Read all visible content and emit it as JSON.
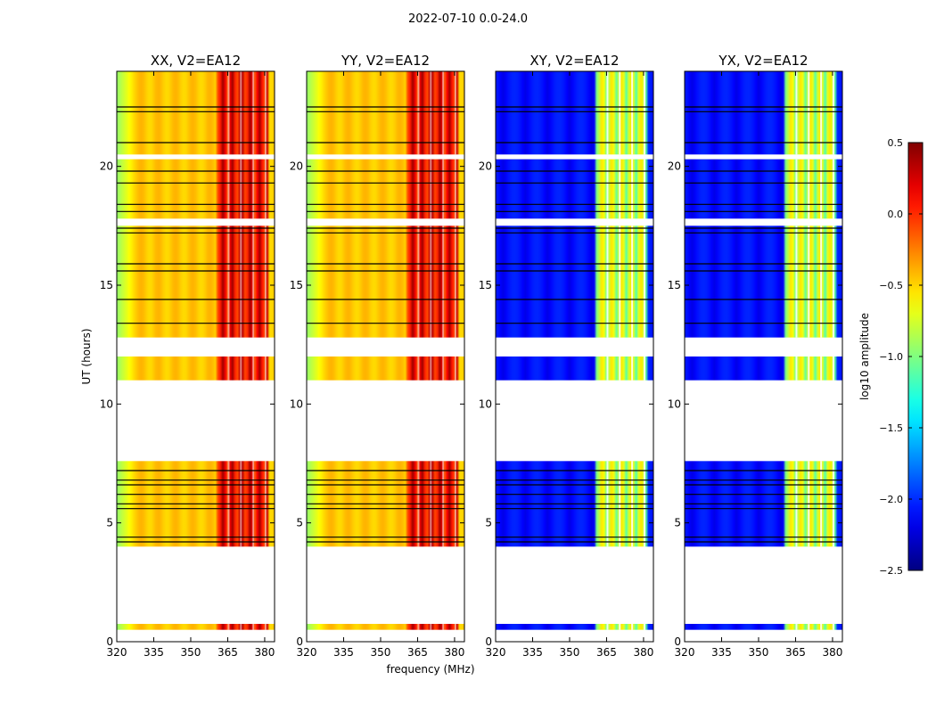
{
  "chart_data": {
    "type": "heatmap",
    "suptitle": "2022-07-10 0.0-24.0",
    "xlabel": "frequency (MHz)",
    "ylabel": "UT (hours)",
    "xlim": [
      320,
      384
    ],
    "ylim": [
      0,
      24
    ],
    "xticks": [
      320,
      335,
      350,
      365,
      380
    ],
    "yticks": [
      0,
      5,
      10,
      15,
      20
    ],
    "panels": [
      {
        "title": "XX, V2=EA12",
        "kind": "auto",
        "label": "XX"
      },
      {
        "title": "YY, V2=EA12",
        "kind": "auto",
        "label": "YY"
      },
      {
        "title": "XY, V2=EA12",
        "kind": "cross",
        "label": "XY"
      },
      {
        "title": "YX, V2=EA12",
        "kind": "cross",
        "label": "YX"
      }
    ],
    "data_ranges_hours": [
      [
        0.5,
        0.75
      ],
      [
        4.0,
        7.6
      ],
      [
        11.0,
        12.0
      ],
      [
        12.8,
        17.5
      ],
      [
        17.8,
        20.3
      ],
      [
        20.5,
        24.0
      ]
    ],
    "flagged_lines_hours": [
      4.2,
      4.4,
      5.6,
      5.8,
      6.2,
      6.6,
      6.8,
      7.2,
      13.4,
      14.4,
      15.6,
      15.9,
      17.2,
      17.4,
      18.1,
      18.4,
      19.3,
      19.8,
      21.0,
      22.3,
      22.5
    ],
    "bright_band_mhz": [
      361,
      381
    ],
    "colorbar": {
      "label": "log10 amplitude",
      "vmin": -2.5,
      "vmax": 0.5,
      "ticks": [
        "0.5",
        "0.0",
        "−0.5",
        "−1.0",
        "−1.5",
        "−2.0",
        "−2.5"
      ],
      "tick_values": [
        0.5,
        0.0,
        -0.5,
        -1.0,
        -1.5,
        -2.0,
        -2.5
      ]
    }
  }
}
